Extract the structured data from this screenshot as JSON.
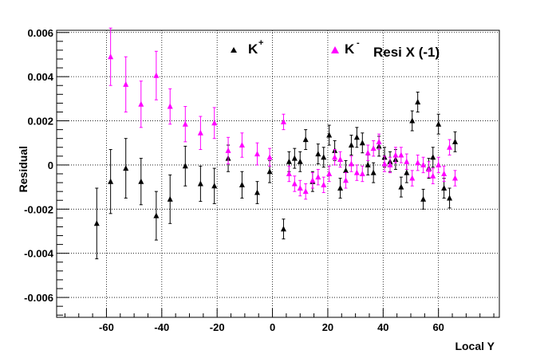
{
  "chart_data": {
    "type": "scatter",
    "xlabel": "Local Y",
    "ylabel": "Residual",
    "xlim": [
      -78,
      82
    ],
    "ylim": [
      -0.0069,
      0.0061
    ],
    "grid": true,
    "x_ticks": [
      -60,
      -40,
      -20,
      0,
      20,
      40,
      60
    ],
    "y_ticks": [
      -0.006,
      -0.004,
      -0.002,
      0,
      0.002,
      0.004,
      0.006
    ],
    "x_tick_labels": [
      "-60",
      "-40",
      "-20",
      "0",
      "20",
      "40",
      "60"
    ],
    "y_tick_labels": [
      "-0.006",
      "-0.004",
      "-0.002",
      "0",
      "0.002",
      "0.004",
      "0.006"
    ],
    "legend": {
      "plus_label": "K",
      "plus_sup": "+",
      "minus_label": "K",
      "minus_sup": "-",
      "extra": "Resi X (-1)"
    },
    "series": [
      {
        "name": "K+",
        "color": "#000000",
        "points": [
          [
            -63.5,
            -0.00265,
            0.0016
          ],
          [
            -58.5,
            -0.00075,
            0.00145
          ],
          [
            -53,
            -0.00015,
            0.00135
          ],
          [
            -47.5,
            -0.00075,
            0.00105
          ],
          [
            -42,
            -0.0023,
            0.0011
          ],
          [
            -37,
            -0.00155,
            0.0011
          ],
          [
            -31.5,
            -5e-05,
            0.0009
          ],
          [
            -26,
            -0.00085,
            0.0008
          ],
          [
            -21,
            -0.00095,
            0.0008
          ],
          [
            -16,
            0.0003,
            0.0006
          ],
          [
            -11,
            -0.0009,
            0.0006
          ],
          [
            -5.5,
            -0.00125,
            0.0005
          ],
          [
            -1,
            -0.0003,
            0.0005
          ],
          [
            4,
            -0.0029,
            0.00045
          ],
          [
            6,
            0.00015,
            0.00045
          ],
          [
            8,
            0.0003,
            0.00045
          ],
          [
            10,
            0.00015,
            0.00045
          ],
          [
            12,
            0.00115,
            0.00045
          ],
          [
            14.5,
            -0.00075,
            0.00045
          ],
          [
            16.5,
            0.0005,
            0.00045
          ],
          [
            18.5,
            0.00035,
            0.00045
          ],
          [
            20.5,
            0.00135,
            0.00045
          ],
          [
            22.5,
            0.00065,
            0.00045
          ],
          [
            24.5,
            -0.00105,
            0.00045
          ],
          [
            26.5,
            -0.00025,
            0.00045
          ],
          [
            28.5,
            0.0009,
            0.00045
          ],
          [
            30.5,
            0.00125,
            0.00045
          ],
          [
            32.5,
            0.001,
            0.00045
          ],
          [
            34.5,
            0.0,
            0.00045
          ],
          [
            36.5,
            -0.00035,
            0.00045
          ],
          [
            38.5,
            0.00085,
            0.00045
          ],
          [
            40.5,
            0.00035,
            0.00045
          ],
          [
            42.5,
            0.00015,
            0.00045
          ],
          [
            44.5,
            0.00025,
            0.00045
          ],
          [
            46.5,
            -0.001,
            0.00045
          ],
          [
            48.5,
            -0.00035,
            0.00045
          ],
          [
            50.5,
            0.002,
            0.00045
          ],
          [
            52.5,
            0.00285,
            0.00045
          ],
          [
            54.5,
            -0.00155,
            0.00045
          ],
          [
            56.5,
            -0.00015,
            0.00045
          ],
          [
            58,
            0.00035,
            0.00045
          ],
          [
            60,
            0.00185,
            0.00045
          ],
          [
            62,
            -0.00105,
            0.00045
          ],
          [
            64,
            -0.0015,
            0.00045
          ],
          [
            66,
            0.00105,
            0.00045
          ]
        ]
      },
      {
        "name": "K-",
        "color": "#ff00ff",
        "points": [
          [
            -58.5,
            0.0049,
            0.0013
          ],
          [
            -53,
            0.00365,
            0.00125
          ],
          [
            -47.5,
            0.00275,
            0.00105
          ],
          [
            -42,
            0.00405,
            0.0011
          ],
          [
            -37,
            0.00265,
            0.0008
          ],
          [
            -31.5,
            0.00185,
            0.0008
          ],
          [
            -26,
            0.00145,
            0.00075
          ],
          [
            -21,
            0.0019,
            0.0007
          ],
          [
            -16,
            0.00065,
            0.0006
          ],
          [
            -11,
            0.0009,
            0.00055
          ],
          [
            -5.5,
            0.0005,
            0.0005
          ],
          [
            -1,
            0.00035,
            0.0004
          ],
          [
            4,
            0.00195,
            0.00035
          ],
          [
            6,
            -0.0004,
            0.00035
          ],
          [
            8,
            -0.00085,
            0.00035
          ],
          [
            10,
            -0.00105,
            0.00035
          ],
          [
            12,
            -0.0012,
            0.00035
          ],
          [
            14.5,
            -0.0007,
            0.00035
          ],
          [
            16.5,
            -0.00055,
            0.00035
          ],
          [
            18.5,
            -0.0009,
            0.00035
          ],
          [
            20.5,
            -0.0004,
            0.00035
          ],
          [
            22.5,
            0.00035,
            0.00035
          ],
          [
            24.5,
            0.00025,
            0.00035
          ],
          [
            26.5,
            -0.0007,
            0.00035
          ],
          [
            28.5,
            5e-05,
            0.00035
          ],
          [
            30.5,
            -0.00035,
            0.00035
          ],
          [
            32.5,
            -0.0004,
            0.00035
          ],
          [
            34.5,
            0.00055,
            0.00035
          ],
          [
            36.5,
            0.00075,
            0.00035
          ],
          [
            38.5,
            0.00105,
            0.00035
          ],
          [
            40.5,
            5e-05,
            0.00035
          ],
          [
            42.5,
            0.0,
            0.00035
          ],
          [
            44.5,
            0.00045,
            0.00035
          ],
          [
            46.5,
            0.00045,
            0.00035
          ],
          [
            48.5,
            0.00015,
            0.00035
          ],
          [
            50.5,
            -0.0006,
            0.00035
          ],
          [
            52.5,
            0.0001,
            0.00035
          ],
          [
            54.5,
            0.0,
            0.00035
          ],
          [
            56.5,
            -0.0002,
            0.00035
          ],
          [
            58,
            -0.0005,
            0.00035
          ],
          [
            60,
            0.0,
            0.00035
          ],
          [
            62,
            -0.0004,
            0.00035
          ],
          [
            64,
            0.0008,
            0.00035
          ],
          [
            66,
            -0.0006,
            0.00035
          ]
        ]
      }
    ]
  }
}
